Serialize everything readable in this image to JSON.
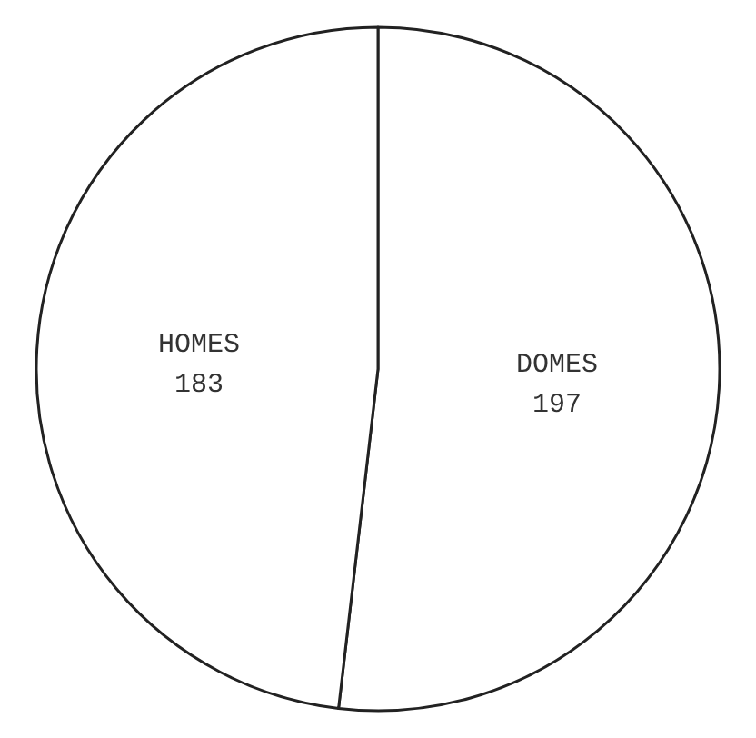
{
  "chart_data": {
    "type": "pie",
    "categories": [
      "DOMES",
      "HOMES"
    ],
    "values": [
      197,
      183
    ],
    "colors": [
      "#ffffff",
      "#ffffff"
    ],
    "data_labels": true
  }
}
